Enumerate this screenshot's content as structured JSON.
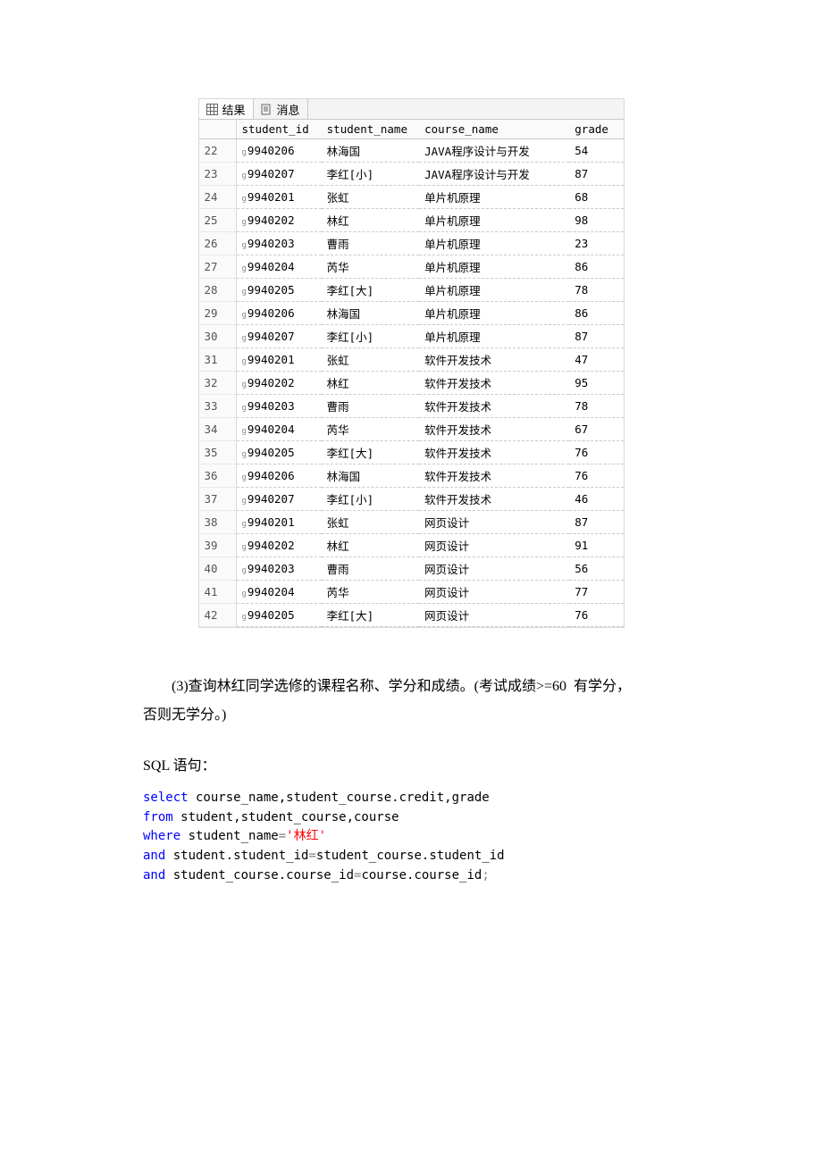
{
  "tabs": {
    "results": "结果",
    "messages": "消息"
  },
  "table": {
    "columns": [
      "student_id",
      "student_name",
      "course_name",
      "grade"
    ],
    "id_prefix": "g",
    "rows": [
      {
        "n": "22",
        "id": "9940206",
        "name": "林海国",
        "course": "JAVA程序设计与开发",
        "grade": "54"
      },
      {
        "n": "23",
        "id": "9940207",
        "name": "李红[小]",
        "course": "JAVA程序设计与开发",
        "grade": "87"
      },
      {
        "n": "24",
        "id": "9940201",
        "name": "张虹",
        "course": "单片机原理",
        "grade": "68"
      },
      {
        "n": "25",
        "id": "9940202",
        "name": "林红",
        "course": "单片机原理",
        "grade": "98"
      },
      {
        "n": "26",
        "id": "9940203",
        "name": "曹雨",
        "course": "单片机原理",
        "grade": "23"
      },
      {
        "n": "27",
        "id": "9940204",
        "name": "芮华",
        "course": "单片机原理",
        "grade": "86"
      },
      {
        "n": "28",
        "id": "9940205",
        "name": "李红[大]",
        "course": "单片机原理",
        "grade": "78"
      },
      {
        "n": "29",
        "id": "9940206",
        "name": "林海国",
        "course": "单片机原理",
        "grade": "86"
      },
      {
        "n": "30",
        "id": "9940207",
        "name": "李红[小]",
        "course": "单片机原理",
        "grade": "87"
      },
      {
        "n": "31",
        "id": "9940201",
        "name": "张虹",
        "course": "软件开发技术",
        "grade": "47"
      },
      {
        "n": "32",
        "id": "9940202",
        "name": "林红",
        "course": "软件开发技术",
        "grade": "95"
      },
      {
        "n": "33",
        "id": "9940203",
        "name": "曹雨",
        "course": "软件开发技术",
        "grade": "78"
      },
      {
        "n": "34",
        "id": "9940204",
        "name": "芮华",
        "course": "软件开发技术",
        "grade": "67"
      },
      {
        "n": "35",
        "id": "9940205",
        "name": "李红[大]",
        "course": "软件开发技术",
        "grade": "76"
      },
      {
        "n": "36",
        "id": "9940206",
        "name": "林海国",
        "course": "软件开发技术",
        "grade": "76"
      },
      {
        "n": "37",
        "id": "9940207",
        "name": "李红[小]",
        "course": "软件开发技术",
        "grade": "46"
      },
      {
        "n": "38",
        "id": "9940201",
        "name": "张虹",
        "course": "网页设计",
        "grade": "87"
      },
      {
        "n": "39",
        "id": "9940202",
        "name": "林红",
        "course": "网页设计",
        "grade": "91"
      },
      {
        "n": "40",
        "id": "9940203",
        "name": "曹雨",
        "course": "网页设计",
        "grade": "56"
      },
      {
        "n": "41",
        "id": "9940204",
        "name": "芮华",
        "course": "网页设计",
        "grade": "77"
      },
      {
        "n": "42",
        "id": "9940205",
        "name": "李红[大]",
        "course": "网页设计",
        "grade": "76"
      }
    ]
  },
  "question": {
    "line1_a": "(3)查询林红同学选修的课程名称、学分和成绩。(考试成绩>=60",
    "line1_b": "有学分，",
    "line2": "否则无学分。)"
  },
  "sql_label": "SQL 语句：",
  "sql": {
    "kw_select": "select",
    "select_cols": " course_name,student_course.credit,grade",
    "kw_from": "from",
    "from_tables": " student,student_course,course",
    "kw_where": "where",
    "where_col": " student_name",
    "op_eq": "=",
    "str_val": "'林红'",
    "kw_and1": "and",
    "and1_body": " student.student_id",
    "and1_body2": "student_course.student_id",
    "kw_and2": "and",
    "and2_body": " student_course.course_id",
    "and2_body2": "course.course_id",
    "op_semi": ";"
  }
}
